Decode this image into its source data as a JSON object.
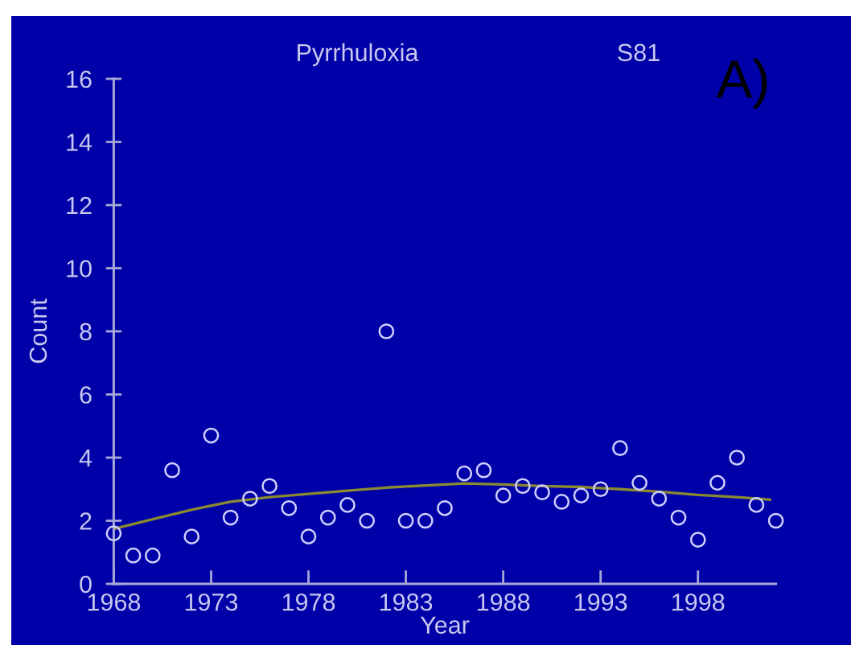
{
  "chart_data": {
    "type": "scatter",
    "title": "Pyrrhuloxia",
    "subtitle": "S81",
    "xlabel": "Year",
    "ylabel": "Count",
    "annotations": [
      "A)"
    ],
    "x": [
      1968,
      1969,
      1970,
      1971,
      1972,
      1973,
      1974,
      1975,
      1976,
      1977,
      1978,
      1979,
      1980,
      1981,
      1982,
      1983,
      1984,
      1985,
      1986,
      1987,
      1988,
      1989,
      1990,
      1991,
      1992,
      1993,
      1994,
      1995,
      1996,
      1997,
      1998,
      1999,
      2000,
      2001,
      2002
    ],
    "xlim": [
      1968,
      2002
    ],
    "xticks": [
      1968,
      1973,
      1978,
      1983,
      1988,
      1993,
      1998
    ],
    "ylim": [
      0,
      16
    ],
    "yticks": [
      0,
      2,
      4,
      6,
      8,
      10,
      12,
      14,
      16
    ],
    "grid": false,
    "series": [
      {
        "color": "#d0d0ff",
        "marker": "circle",
        "values": [
          1.6,
          0.9,
          0.9,
          3.6,
          1.5,
          4.7,
          2.1,
          2.7,
          3.1,
          2.4,
          1.5,
          2.1,
          2.5,
          2.0,
          8.0,
          2.0,
          2.0,
          2.4,
          3.5,
          3.6,
          2.8,
          3.1,
          2.9,
          2.6,
          2.8,
          3.0,
          4.3,
          3.2,
          2.7,
          2.1,
          1.4,
          3.2,
          4.0,
          2.5,
          2.0
        ]
      },
      {
        "type": "line",
        "color": "#8a8a30",
        "marker": "none",
        "line_style": "solid",
        "x": [
          1968,
          1970,
          1972,
          1974,
          1976,
          1978,
          1980,
          1982,
          1984,
          1986,
          1988,
          1990,
          1992,
          1994,
          1996,
          1998,
          2000,
          2001.7
        ],
        "values": [
          1.74,
          2.05,
          2.35,
          2.6,
          2.75,
          2.85,
          2.95,
          3.05,
          3.12,
          3.18,
          3.15,
          3.1,
          3.07,
          3.0,
          2.92,
          2.82,
          2.75,
          2.67
        ]
      }
    ]
  }
}
